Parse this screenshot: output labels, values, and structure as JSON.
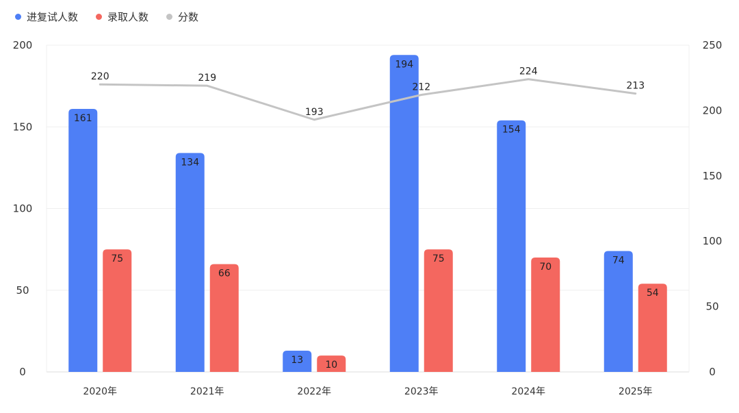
{
  "chart_data": {
    "type": "bar",
    "categories": [
      "2020年",
      "2021年",
      "2022年",
      "2023年",
      "2024年",
      "2025年"
    ],
    "series": [
      {
        "name": "进复试人数",
        "type": "bar",
        "axis": "left",
        "color": "#4e7ff6",
        "values": [
          161,
          134,
          13,
          194,
          154,
          74
        ]
      },
      {
        "name": "录取人数",
        "type": "bar",
        "axis": "left",
        "color": "#f4675f",
        "values": [
          75,
          66,
          10,
          75,
          70,
          54
        ]
      },
      {
        "name": "分数",
        "type": "line",
        "axis": "right",
        "color": "#c4c4c4",
        "values": [
          220,
          219,
          193,
          212,
          224,
          213
        ]
      }
    ],
    "y_left": {
      "ticks": [
        "0",
        "50",
        "100",
        "150",
        "200"
      ],
      "range": [
        0,
        200
      ]
    },
    "y_right": {
      "ticks": [
        "0",
        "50",
        "100",
        "150",
        "200",
        "250"
      ],
      "range": [
        0,
        250
      ]
    },
    "grid": true,
    "legend_position": "top-left"
  }
}
